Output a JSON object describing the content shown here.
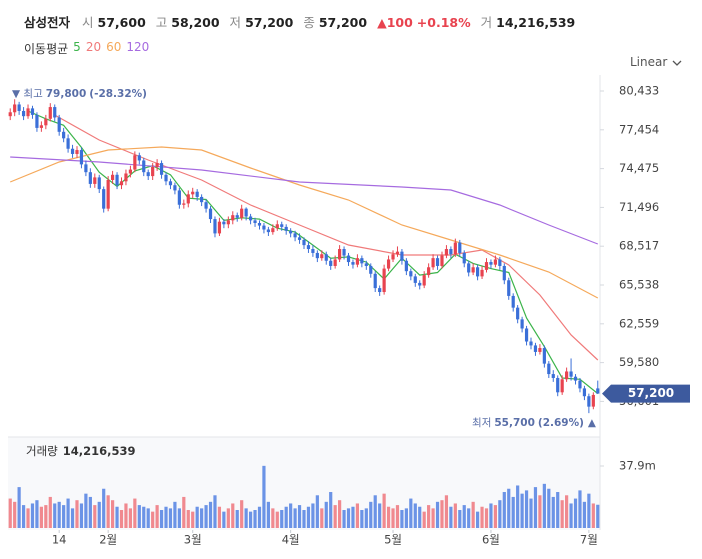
{
  "header": {
    "name": "삼성전자",
    "open_label": "시",
    "open": "57,600",
    "high_label": "고",
    "high": "58,200",
    "low_label": "저",
    "low": "57,200",
    "close_label": "종",
    "close": "57,200",
    "change": "▲100",
    "change_pct": "+0.18%",
    "volume_label": "거",
    "volume": "14,216,539",
    "scale": "Linear"
  },
  "chart_data": {
    "type": "candlestick",
    "ma_title": "이동평균",
    "up_color": "#e8434f",
    "down_color": "#3a6fd8",
    "volume_up_color": "#f0898f",
    "volume_down_color": "#6b93e6",
    "xlim": [
      -0.5,
      132.5
    ],
    "xticks": [
      {
        "value": 11,
        "label": "14"
      },
      {
        "value": 22,
        "label": "2월"
      },
      {
        "value": 41,
        "label": "3월"
      },
      {
        "value": 63,
        "label": "4월"
      },
      {
        "value": 86,
        "label": "5월"
      },
      {
        "value": 108,
        "label": "6월"
      },
      {
        "value": 130,
        "label": "7월"
      }
    ],
    "ylim": [
      54790,
      81278
    ],
    "yticks": [
      {
        "value": 80433,
        "label": "80,433"
      },
      {
        "value": 77454,
        "label": "77,454"
      },
      {
        "value": 74475,
        "label": "74,475"
      },
      {
        "value": 71496,
        "label": "71,496"
      },
      {
        "value": 68517,
        "label": "68,517"
      },
      {
        "value": 65538,
        "label": "65,538"
      },
      {
        "value": 62559,
        "label": "62,559"
      },
      {
        "value": 59580,
        "label": "59,580"
      },
      {
        "value": 56601,
        "label": "56,601"
      }
    ],
    "current_price": {
      "value": 57200,
      "label": "57,200"
    },
    "max_label": "최고",
    "max_value": {
      "value": 79800,
      "label": "79,800"
    },
    "max_pct": "(-28.32%)",
    "min_label": "최저",
    "min_value": {
      "value": 55700,
      "label": "55,700"
    },
    "min_pct": "(2.69%)",
    "candles": [
      [
        78500,
        79100,
        78200,
        78800
      ],
      [
        78800,
        79800,
        78500,
        79400
      ],
      [
        79400,
        79600,
        78600,
        78900
      ],
      [
        78900,
        79200,
        78200,
        78500
      ],
      [
        78500,
        79400,
        78300,
        79100
      ],
      [
        79100,
        79300,
        78300,
        78600
      ],
      [
        78600,
        78800,
        77300,
        77600
      ],
      [
        77600,
        78100,
        77300,
        77800
      ],
      [
        77800,
        78600,
        77500,
        78300
      ],
      [
        78300,
        79500,
        78100,
        79200
      ],
      [
        79200,
        79400,
        78100,
        78400
      ],
      [
        78400,
        78600,
        77000,
        77300
      ],
      [
        77300,
        77600,
        76500,
        76800
      ],
      [
        76800,
        77100,
        75700,
        76000
      ],
      [
        76000,
        76300,
        75300,
        75600
      ],
      [
        75600,
        76200,
        75300,
        75900
      ],
      [
        75900,
        76100,
        74500,
        74800
      ],
      [
        74800,
        75100,
        73900,
        74200
      ],
      [
        74200,
        74500,
        73000,
        73300
      ],
      [
        73300,
        74100,
        73000,
        73800
      ],
      [
        73800,
        74000,
        72600,
        72900
      ],
      [
        72900,
        73100,
        71100,
        71400
      ],
      [
        71400,
        73900,
        71200,
        73600
      ],
      [
        73600,
        74300,
        73300,
        74000
      ],
      [
        74000,
        74200,
        72900,
        73200
      ],
      [
        73200,
        73800,
        72900,
        73500
      ],
      [
        73500,
        74400,
        73200,
        74100
      ],
      [
        74100,
        74700,
        73800,
        74400
      ],
      [
        74400,
        75800,
        74200,
        75500
      ],
      [
        75500,
        75700,
        74800,
        75100
      ],
      [
        75100,
        75300,
        73900,
        74200
      ],
      [
        74200,
        74400,
        73600,
        73900
      ],
      [
        73900,
        74900,
        73600,
        74600
      ],
      [
        74600,
        75200,
        74300,
        74900
      ],
      [
        74900,
        75100,
        73700,
        74000
      ],
      [
        74000,
        74200,
        73200,
        73500
      ],
      [
        73500,
        73700,
        72900,
        73200
      ],
      [
        73200,
        73400,
        72500,
        72800
      ],
      [
        72800,
        73000,
        71400,
        71700
      ],
      [
        71700,
        72100,
        71400,
        71800
      ],
      [
        71800,
        72800,
        71500,
        72500
      ],
      [
        72500,
        73000,
        72200,
        72700
      ],
      [
        72700,
        72900,
        72000,
        72300
      ],
      [
        72300,
        72500,
        71600,
        71900
      ],
      [
        71900,
        72100,
        71100,
        71400
      ],
      [
        71400,
        71600,
        70300,
        70600
      ],
      [
        70600,
        70800,
        69200,
        69500
      ],
      [
        69500,
        70700,
        69300,
        70400
      ],
      [
        70400,
        70600,
        69900,
        70200
      ],
      [
        70200,
        70800,
        69900,
        70500
      ],
      [
        70500,
        71200,
        70200,
        70900
      ],
      [
        70900,
        71100,
        70400,
        70700
      ],
      [
        70700,
        71700,
        70500,
        71400
      ],
      [
        71400,
        71500,
        70500,
        70800
      ],
      [
        70800,
        71000,
        70200,
        70500
      ],
      [
        70500,
        70700,
        70000,
        70300
      ],
      [
        70300,
        70500,
        69800,
        70100
      ],
      [
        70100,
        70300,
        69500,
        69800
      ],
      [
        69800,
        70000,
        69300,
        69600
      ],
      [
        69600,
        70200,
        69400,
        69900
      ],
      [
        69900,
        70500,
        69700,
        70200
      ],
      [
        70200,
        70400,
        69700,
        70000
      ],
      [
        70000,
        70200,
        69400,
        69700
      ],
      [
        69700,
        69900,
        69200,
        69500
      ],
      [
        69500,
        69700,
        68900,
        69200
      ],
      [
        69200,
        69500,
        68700,
        69000
      ],
      [
        69000,
        69200,
        68300,
        68600
      ],
      [
        68600,
        68900,
        68000,
        68300
      ],
      [
        68300,
        68600,
        67700,
        68000
      ],
      [
        68000,
        68200,
        67300,
        67600
      ],
      [
        67600,
        68200,
        67400,
        67900
      ],
      [
        67900,
        68100,
        67100,
        67400
      ],
      [
        67400,
        67600,
        66700,
        67000
      ],
      [
        67000,
        67800,
        66800,
        67500
      ],
      [
        67500,
        68600,
        67300,
        68300
      ],
      [
        68300,
        68500,
        67500,
        67800
      ],
      [
        67800,
        68000,
        67000,
        67300
      ],
      [
        67300,
        67500,
        66800,
        67100
      ],
      [
        67100,
        67900,
        66900,
        67600
      ],
      [
        67600,
        67800,
        66900,
        67200
      ],
      [
        67200,
        67400,
        66700,
        67000
      ],
      [
        67000,
        67200,
        66100,
        66400
      ],
      [
        66400,
        66600,
        65000,
        65300
      ],
      [
        65300,
        65500,
        64700,
        65000
      ],
      [
        65000,
        67100,
        64800,
        66800
      ],
      [
        66800,
        67800,
        66600,
        67500
      ],
      [
        67500,
        68200,
        67300,
        67900
      ],
      [
        67900,
        68500,
        67700,
        68100
      ],
      [
        68100,
        68300,
        67100,
        67400
      ],
      [
        67400,
        67600,
        66300,
        66600
      ],
      [
        66600,
        66800,
        65900,
        66200
      ],
      [
        66200,
        66400,
        65400,
        65700
      ],
      [
        65700,
        65900,
        65200,
        65500
      ],
      [
        65500,
        66600,
        65300,
        66300
      ],
      [
        66300,
        67200,
        66100,
        66900
      ],
      [
        66900,
        67900,
        66700,
        67600
      ],
      [
        67600,
        67800,
        66700,
        67000
      ],
      [
        67000,
        68100,
        66800,
        67800
      ],
      [
        67800,
        68600,
        67600,
        68300
      ],
      [
        68300,
        68500,
        67600,
        67900
      ],
      [
        67900,
        69100,
        67700,
        68800
      ],
      [
        68800,
        69000,
        67700,
        68000
      ],
      [
        68000,
        68200,
        66900,
        67200
      ],
      [
        67200,
        67400,
        66200,
        66500
      ],
      [
        66500,
        67200,
        66300,
        66900
      ],
      [
        66900,
        67100,
        65900,
        66200
      ],
      [
        66200,
        67000,
        66000,
        66700
      ],
      [
        66700,
        67600,
        66500,
        67300
      ],
      [
        67300,
        67500,
        66800,
        67100
      ],
      [
        67100,
        67800,
        66900,
        67500
      ],
      [
        67500,
        67700,
        66700,
        67000
      ],
      [
        67000,
        67200,
        65600,
        65900
      ],
      [
        65900,
        66100,
        64400,
        64700
      ],
      [
        64700,
        64900,
        63500,
        63800
      ],
      [
        63800,
        64000,
        62600,
        62900
      ],
      [
        62900,
        63100,
        61900,
        62200
      ],
      [
        62200,
        62400,
        60900,
        61200
      ],
      [
        61200,
        61500,
        60600,
        60900
      ],
      [
        60900,
        61100,
        60100,
        60400
      ],
      [
        60400,
        61000,
        60200,
        60700
      ],
      [
        60700,
        60900,
        59200,
        59500
      ],
      [
        59500,
        59700,
        58400,
        58700
      ],
      [
        58700,
        59000,
        58100,
        58400
      ],
      [
        58400,
        58600,
        57000,
        57300
      ],
      [
        57300,
        58600,
        57100,
        58300
      ],
      [
        58300,
        59200,
        58100,
        58900
      ],
      [
        58900,
        59900,
        58200,
        58500
      ],
      [
        58500,
        58700,
        57900,
        58200
      ],
      [
        58200,
        58400,
        57300,
        57600
      ],
      [
        57600,
        57800,
        56700,
        57000
      ],
      [
        57000,
        57200,
        55700,
        56200
      ],
      [
        56200,
        57300,
        56000,
        57100
      ],
      [
        57600,
        58200,
        57200,
        57200
      ]
    ],
    "volume_title": "거래량",
    "volume_value_label": "14,216,539",
    "volume_ylim": [
      0,
      53800000
    ],
    "volume_yticks": [
      {
        "value": 37900000,
        "label": "37.9m"
      }
    ],
    "volumes": [
      18000000,
      16000000,
      25000000,
      14000000,
      12000000,
      15000000,
      17000000,
      13000000,
      14000000,
      19000000,
      15000000,
      16000000,
      14000000,
      18000000,
      12000000,
      17000000,
      15000000,
      21000000,
      19000000,
      14000000,
      16000000,
      24000000,
      20000000,
      17000000,
      13000000,
      11000000,
      15000000,
      12000000,
      18000000,
      14000000,
      13000000,
      12000000,
      10000000,
      14000000,
      11000000,
      13000000,
      12000000,
      16000000,
      12000000,
      19000000,
      11000000,
      10000000,
      13000000,
      12000000,
      14000000,
      16000000,
      20000000,
      13000000,
      10000000,
      12000000,
      15000000,
      11000000,
      17000000,
      12000000,
      10000000,
      11000000,
      13000000,
      38000000,
      16000000,
      12000000,
      10000000,
      11000000,
      13000000,
      15000000,
      12000000,
      14000000,
      11000000,
      13000000,
      15000000,
      20000000,
      12000000,
      16000000,
      22000000,
      14000000,
      17000000,
      11000000,
      12000000,
      13000000,
      15000000,
      11000000,
      12000000,
      16000000,
      20000000,
      15000000,
      21000000,
      13000000,
      12000000,
      14000000,
      11000000,
      12000000,
      18000000,
      15000000,
      13000000,
      10000000,
      14000000,
      12000000,
      16000000,
      17000000,
      20000000,
      13000000,
      15000000,
      11000000,
      14000000,
      12000000,
      16000000,
      10000000,
      13000000,
      12000000,
      15000000,
      14000000,
      17000000,
      22000000,
      24000000,
      19000000,
      26000000,
      21000000,
      23000000,
      18000000,
      25000000,
      20000000,
      27000000,
      24000000,
      19000000,
      22000000,
      17000000,
      20000000,
      15000000,
      18000000,
      23000000,
      16000000,
      21000000,
      15000000,
      14216539
    ],
    "series": [
      {
        "name": "5",
        "color": "#3cb44b",
        "x": [
          4,
          8,
          12,
          16,
          20,
          24,
          28,
          32,
          36,
          40,
          44,
          48,
          52,
          56,
          60,
          64,
          68,
          72,
          76,
          80,
          84,
          88,
          92,
          96,
          100,
          104,
          108,
          112,
          116,
          120,
          124,
          128,
          132
        ],
        "values": [
          78900,
          78300,
          77800,
          76100,
          74200,
          73100,
          74300,
          74700,
          74000,
          72200,
          72100,
          70500,
          70700,
          70600,
          69900,
          69600,
          68600,
          67600,
          67700,
          67300,
          66000,
          67600,
          66300,
          66500,
          67900,
          67200,
          66800,
          66500,
          63000,
          60800,
          58400,
          58300,
          57200
        ]
      },
      {
        "name": "20",
        "color": "#f07a7a",
        "x": [
          10,
          20,
          31,
          43,
          54,
          65,
          76,
          88,
          99,
          106,
          112,
          119,
          126,
          132
        ],
        "values": [
          78590,
          76671,
          75135,
          73600,
          71680,
          70144,
          68609,
          67841,
          67841,
          68225,
          67073,
          64770,
          61699,
          59780
        ]
      },
      {
        "name": "60",
        "color": "#f5a95b",
        "x": [
          0,
          11,
          22,
          34,
          43,
          54,
          65,
          76,
          88,
          99,
          110,
          121,
          132
        ],
        "values": [
          73446,
          74982,
          75903,
          76133,
          75903,
          74521,
          73215,
          72064,
          70144,
          68993,
          67841,
          66536,
          64540
        ]
      },
      {
        "name": "120",
        "color": "#a66be0",
        "x": [
          0,
          20,
          43,
          65,
          88,
          99,
          110,
          121,
          132
        ],
        "values": [
          75366,
          74982,
          74368,
          73446,
          73062,
          72832,
          71680,
          70144,
          68686
        ]
      }
    ]
  }
}
